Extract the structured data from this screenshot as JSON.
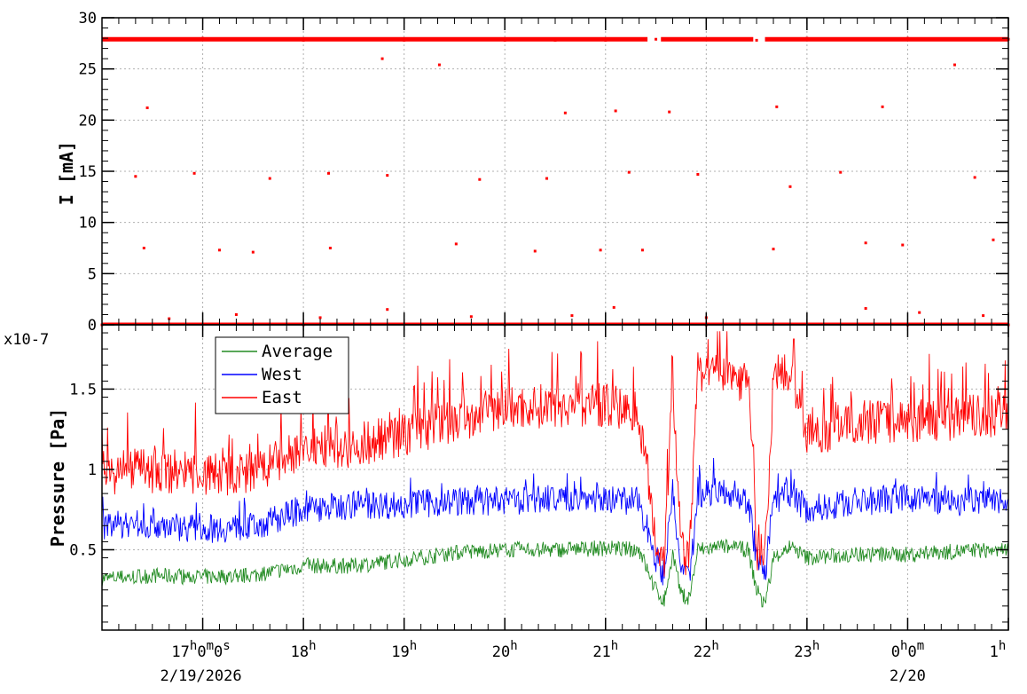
{
  "chart_data": [
    {
      "type": "scatter",
      "ylabel": "I [mA]",
      "ylim": [
        0,
        30
      ],
      "y_ticks": [
        "0",
        "5",
        "10",
        "15",
        "20",
        "25",
        "30"
      ],
      "grid": true,
      "series": [
        {
          "color": "#ff0000",
          "points": [
            [
              "2026-02-19T16:30",
              27.9
            ],
            [
              "2026-02-19T17:00",
              28.0
            ],
            [
              "2026-02-19T17:30",
              27.9
            ],
            [
              "2026-02-19T18:00",
              27.8
            ],
            [
              "2026-02-19T18:30",
              27.9
            ],
            [
              "2026-02-19T19:00",
              27.8
            ],
            [
              "2026-02-19T19:30",
              27.9
            ],
            [
              "2026-02-19T20:00",
              27.8
            ],
            [
              "2026-02-19T20:30",
              27.8
            ],
            [
              "2026-02-19T21:00",
              27.8
            ],
            [
              "2026-02-19T21:30",
              27.9
            ],
            [
              "2026-02-19T22:00",
              27.9
            ],
            [
              "2026-02-19T22:30",
              27.8
            ],
            [
              "2026-02-19T23:00",
              28.0
            ],
            [
              "2026-02-19T23:30",
              27.9
            ],
            [
              "2026-02-20T00:00",
              28.0
            ],
            [
              "2026-02-20T00:30",
              27.9
            ],
            [
              "2026-02-20T01:00",
              27.9
            ],
            [
              "2026-02-19T16:27",
              21.2
            ],
            [
              "2026-02-19T20:36",
              20.7
            ],
            [
              "2026-02-19T21:06",
              20.9
            ],
            [
              "2026-02-19T21:38",
              20.8
            ],
            [
              "2026-02-19T22:42",
              21.3
            ],
            [
              "2026-02-19T23:45",
              21.3
            ],
            [
              "2026-02-19T18:47",
              26.0
            ],
            [
              "2026-02-19T19:21",
              25.4
            ],
            [
              "2026-02-20T00:28",
              25.4
            ],
            [
              "2026-02-19T16:20",
              14.5
            ],
            [
              "2026-02-19T16:55",
              14.8
            ],
            [
              "2026-02-19T17:40",
              14.3
            ],
            [
              "2026-02-19T18:15",
              14.8
            ],
            [
              "2026-02-19T18:50",
              14.6
            ],
            [
              "2026-02-19T19:45",
              14.2
            ],
            [
              "2026-02-19T20:25",
              14.3
            ],
            [
              "2026-02-19T21:14",
              14.9
            ],
            [
              "2026-02-19T21:55",
              14.7
            ],
            [
              "2026-02-19T22:50",
              13.5
            ],
            [
              "2026-02-19T23:20",
              14.9
            ],
            [
              "2026-02-20T00:40",
              14.4
            ],
            [
              "2026-02-19T16:25",
              7.5
            ],
            [
              "2026-02-19T17:10",
              7.3
            ],
            [
              "2026-02-19T17:30",
              7.1
            ],
            [
              "2026-02-19T18:16",
              7.5
            ],
            [
              "2026-02-19T19:31",
              7.9
            ],
            [
              "2026-02-19T20:18",
              7.2
            ],
            [
              "2026-02-19T20:57",
              7.3
            ],
            [
              "2026-02-19T21:22",
              7.3
            ],
            [
              "2026-02-19T22:40",
              7.4
            ],
            [
              "2026-02-19T23:35",
              8.0
            ],
            [
              "2026-02-19T23:57",
              7.8
            ],
            [
              "2026-02-20T00:51",
              8.3
            ],
            [
              "2026-02-19T16:40",
              0.6
            ],
            [
              "2026-02-19T17:20",
              1.0
            ],
            [
              "2026-02-19T18:10",
              0.7
            ],
            [
              "2026-02-19T18:50",
              1.5
            ],
            [
              "2026-02-19T19:40",
              0.8
            ],
            [
              "2026-02-19T20:40",
              0.9
            ],
            [
              "2026-02-19T21:05",
              1.7
            ],
            [
              "2026-02-19T22:00",
              0.7
            ],
            [
              "2026-02-19T23:35",
              1.6
            ],
            [
              "2026-02-20T00:07",
              1.2
            ],
            [
              "2026-02-20T00:45",
              0.9
            ],
            [
              "2026-02-19T16:00",
              0.0
            ],
            [
              "2026-02-19T18:00",
              0.0
            ],
            [
              "2026-02-19T20:00",
              0.0
            ],
            [
              "2026-02-19T22:00",
              0.0
            ],
            [
              "2026-02-20T00:00",
              0.0
            ],
            [
              "2026-02-20T01:00",
              0.0
            ]
          ]
        }
      ]
    },
    {
      "type": "line",
      "ylabel": "Pressure [Pa]",
      "y_exponent": "x10-7",
      "ylim": [
        0.0,
        1.9
      ],
      "y_ticks": [
        "0.5",
        "1",
        "1.5"
      ],
      "grid": true,
      "legend_position": "top-left",
      "x_ticks": [
        "17h0m0s",
        "18h",
        "19h",
        "20h",
        "21h",
        "22h",
        "23h",
        "0h0m",
        "1h"
      ],
      "x_dates": [
        "2/19/2026",
        "2/20"
      ],
      "x_range": [
        "2026-02-19T16:00",
        "2026-02-20T01:00"
      ],
      "series": [
        {
          "name": "Average",
          "color": "#228b22",
          "points": [
            [
              "2026-02-19T16:00",
              0.32
            ],
            [
              "2026-02-19T16:30",
              0.34
            ],
            [
              "2026-02-19T17:00",
              0.33
            ],
            [
              "2026-02-19T17:30",
              0.34
            ],
            [
              "2026-02-19T18:00",
              0.4
            ],
            [
              "2026-02-19T18:30",
              0.4
            ],
            [
              "2026-02-19T19:00",
              0.44
            ],
            [
              "2026-02-19T19:30",
              0.48
            ],
            [
              "2026-02-19T20:00",
              0.5
            ],
            [
              "2026-02-19T20:30",
              0.5
            ],
            [
              "2026-02-19T21:00",
              0.51
            ],
            [
              "2026-02-19T21:20",
              0.5
            ],
            [
              "2026-02-19T21:30",
              0.25
            ],
            [
              "2026-02-19T21:35",
              0.18
            ],
            [
              "2026-02-19T21:40",
              0.48
            ],
            [
              "2026-02-19T21:45",
              0.22
            ],
            [
              "2026-02-19T21:50",
              0.2
            ],
            [
              "2026-02-19T21:55",
              0.5
            ],
            [
              "2026-02-19T22:10",
              0.52
            ],
            [
              "2026-02-19T22:25",
              0.5
            ],
            [
              "2026-02-19T22:30",
              0.25
            ],
            [
              "2026-02-19T22:35",
              0.15
            ],
            [
              "2026-02-19T22:40",
              0.45
            ],
            [
              "2026-02-19T22:50",
              0.52
            ],
            [
              "2026-02-19T23:00",
              0.45
            ],
            [
              "2026-02-19T23:30",
              0.47
            ],
            [
              "2026-02-20T00:00",
              0.47
            ],
            [
              "2026-02-20T00:30",
              0.49
            ],
            [
              "2026-02-20T01:00",
              0.5
            ]
          ]
        },
        {
          "name": "West",
          "color": "#0000ff",
          "points": [
            [
              "2026-02-19T16:00",
              0.65
            ],
            [
              "2026-02-19T16:30",
              0.66
            ],
            [
              "2026-02-19T17:00",
              0.63
            ],
            [
              "2026-02-19T17:30",
              0.64
            ],
            [
              "2026-02-19T18:00",
              0.75
            ],
            [
              "2026-02-19T18:30",
              0.78
            ],
            [
              "2026-02-19T19:00",
              0.78
            ],
            [
              "2026-02-19T19:30",
              0.8
            ],
            [
              "2026-02-19T20:00",
              0.8
            ],
            [
              "2026-02-19T20:30",
              0.82
            ],
            [
              "2026-02-19T21:00",
              0.82
            ],
            [
              "2026-02-19T21:20",
              0.8
            ],
            [
              "2026-02-19T21:30",
              0.45
            ],
            [
              "2026-02-19T21:35",
              0.35
            ],
            [
              "2026-02-19T21:40",
              0.85
            ],
            [
              "2026-02-19T21:45",
              0.35
            ],
            [
              "2026-02-19T21:50",
              0.3
            ],
            [
              "2026-02-19T21:55",
              0.85
            ],
            [
              "2026-02-19T22:10",
              0.88
            ],
            [
              "2026-02-19T22:25",
              0.8
            ],
            [
              "2026-02-19T22:30",
              0.45
            ],
            [
              "2026-02-19T22:35",
              0.35
            ],
            [
              "2026-02-19T22:40",
              0.8
            ],
            [
              "2026-02-19T22:50",
              0.85
            ],
            [
              "2026-02-19T23:00",
              0.75
            ],
            [
              "2026-02-19T23:30",
              0.8
            ],
            [
              "2026-02-20T00:00",
              0.82
            ],
            [
              "2026-02-20T00:30",
              0.8
            ],
            [
              "2026-02-20T01:00",
              0.82
            ]
          ]
        },
        {
          "name": "East",
          "color": "#ff0000",
          "points": [
            [
              "2026-02-19T16:00",
              0.98
            ],
            [
              "2026-02-19T16:30",
              0.99
            ],
            [
              "2026-02-19T17:00",
              0.97
            ],
            [
              "2026-02-19T17:30",
              0.97
            ],
            [
              "2026-02-19T18:00",
              1.13
            ],
            [
              "2026-02-19T18:30",
              1.15
            ],
            [
              "2026-02-19T19:00",
              1.22
            ],
            [
              "2026-02-19T19:30",
              1.3
            ],
            [
              "2026-02-19T20:00",
              1.38
            ],
            [
              "2026-02-19T20:30",
              1.4
            ],
            [
              "2026-02-19T21:00",
              1.4
            ],
            [
              "2026-02-19T21:20",
              1.35
            ],
            [
              "2026-02-19T21:30",
              0.55
            ],
            [
              "2026-02-19T21:35",
              0.45
            ],
            [
              "2026-02-19T21:40",
              1.55
            ],
            [
              "2026-02-19T21:45",
              0.5
            ],
            [
              "2026-02-19T21:50",
              0.45
            ],
            [
              "2026-02-19T21:55",
              1.6
            ],
            [
              "2026-02-19T22:10",
              1.6
            ],
            [
              "2026-02-19T22:25",
              1.55
            ],
            [
              "2026-02-19T22:30",
              0.5
            ],
            [
              "2026-02-19T22:35",
              0.45
            ],
            [
              "2026-02-19T22:40",
              1.55
            ],
            [
              "2026-02-19T22:50",
              1.62
            ],
            [
              "2026-02-19T23:00",
              1.2
            ],
            [
              "2026-02-19T23:30",
              1.3
            ],
            [
              "2026-02-20T00:00",
              1.3
            ],
            [
              "2026-02-20T00:30",
              1.32
            ],
            [
              "2026-02-20T01:00",
              1.35
            ]
          ]
        }
      ]
    }
  ]
}
